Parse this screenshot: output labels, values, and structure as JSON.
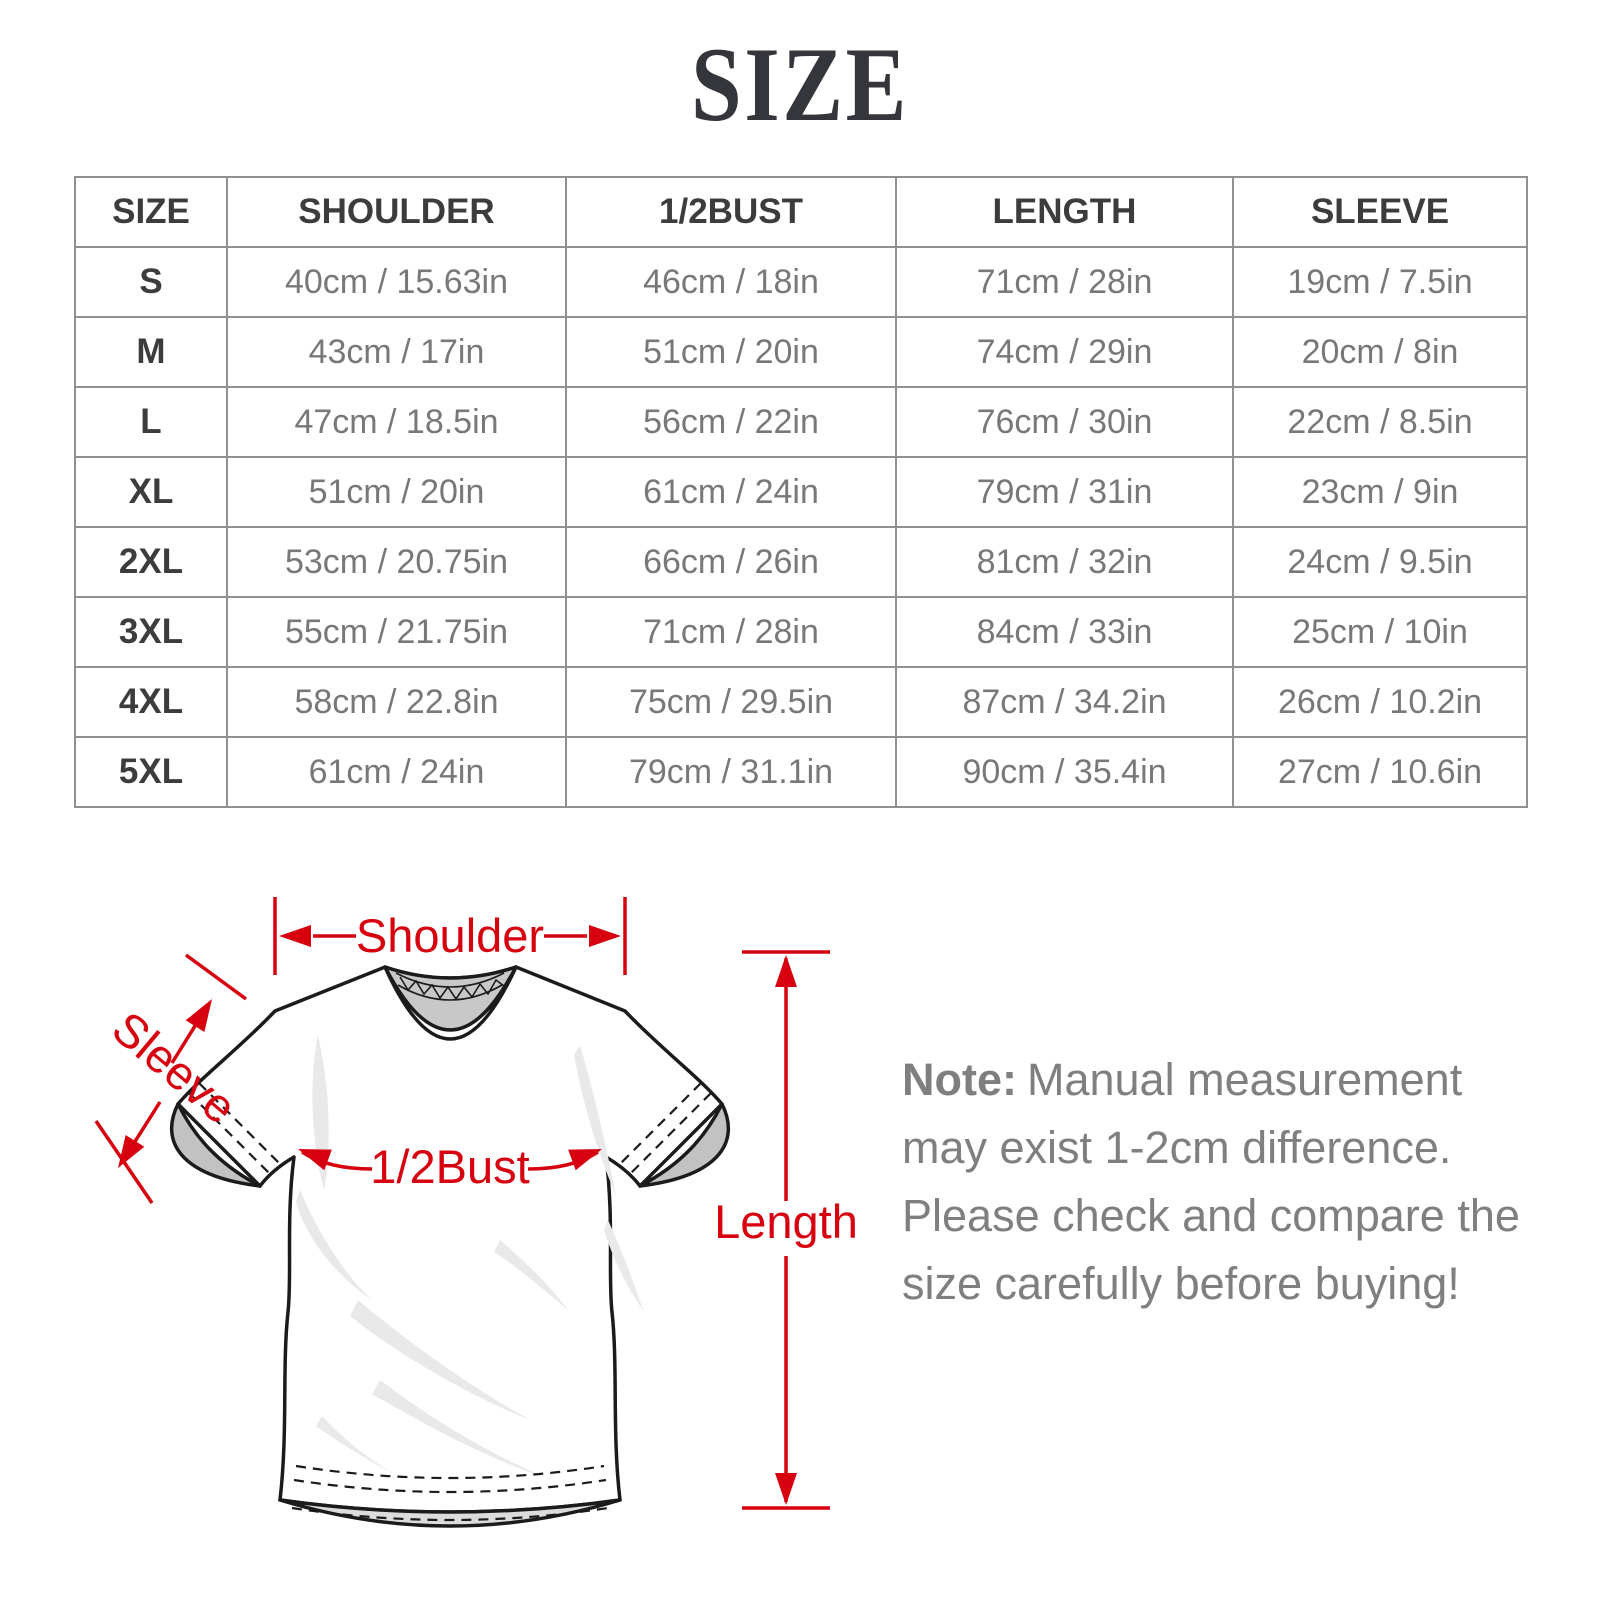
{
  "title": "SIZE",
  "size_table": {
    "columns": [
      "SIZE",
      "SHOULDER",
      "1/2BUST",
      "LENGTH",
      "SLEEVE"
    ],
    "rows": [
      [
        "S",
        "40cm / 15.63in",
        "46cm / 18in",
        "71cm / 28in",
        "19cm / 7.5in"
      ],
      [
        "M",
        "43cm / 17in",
        "51cm / 20in",
        "74cm / 29in",
        "20cm / 8in"
      ],
      [
        "L",
        "47cm / 18.5in",
        "56cm / 22in",
        "76cm / 30in",
        "22cm / 8.5in"
      ],
      [
        "XL",
        "51cm / 20in",
        "61cm / 24in",
        "79cm / 31in",
        "23cm / 9in"
      ],
      [
        "2XL",
        "53cm / 20.75in",
        "66cm / 26in",
        "81cm / 32in",
        "24cm / 9.5in"
      ],
      [
        "3XL",
        "55cm / 21.75in",
        "71cm / 28in",
        "84cm / 33in",
        "25cm / 10in"
      ],
      [
        "4XL",
        "58cm / 22.8in",
        "75cm / 29.5in",
        "87cm / 34.2in",
        "26cm / 10.2in"
      ],
      [
        "5XL",
        "61cm / 24in",
        "79cm / 31.1in",
        "90cm / 35.4in",
        "27cm / 10.6in"
      ]
    ]
  },
  "diagram": {
    "labels": {
      "shoulder": "Shoulder",
      "sleeve": "Sleeve",
      "bust": "1/2Bust",
      "length": "Length"
    }
  },
  "note": {
    "label": "Note:",
    "text": "Manual measurement may exist 1-2cm difference. Please check and compare the size carefully before buying!"
  },
  "colors": {
    "accent_red": "#d7000f",
    "table_border": "#909090",
    "header_text": "#3c3c3c",
    "cell_text": "#787878",
    "note_text": "#7f7f7f",
    "title_text": "#35363b",
    "shirt_outline": "#1b1b1b",
    "collar_gray": "#c8c8c8",
    "cuff_gray": "#c2c2c2",
    "hem_gray": "#dcdcdc",
    "wrinkle_gray": "#e9e9e9"
  }
}
